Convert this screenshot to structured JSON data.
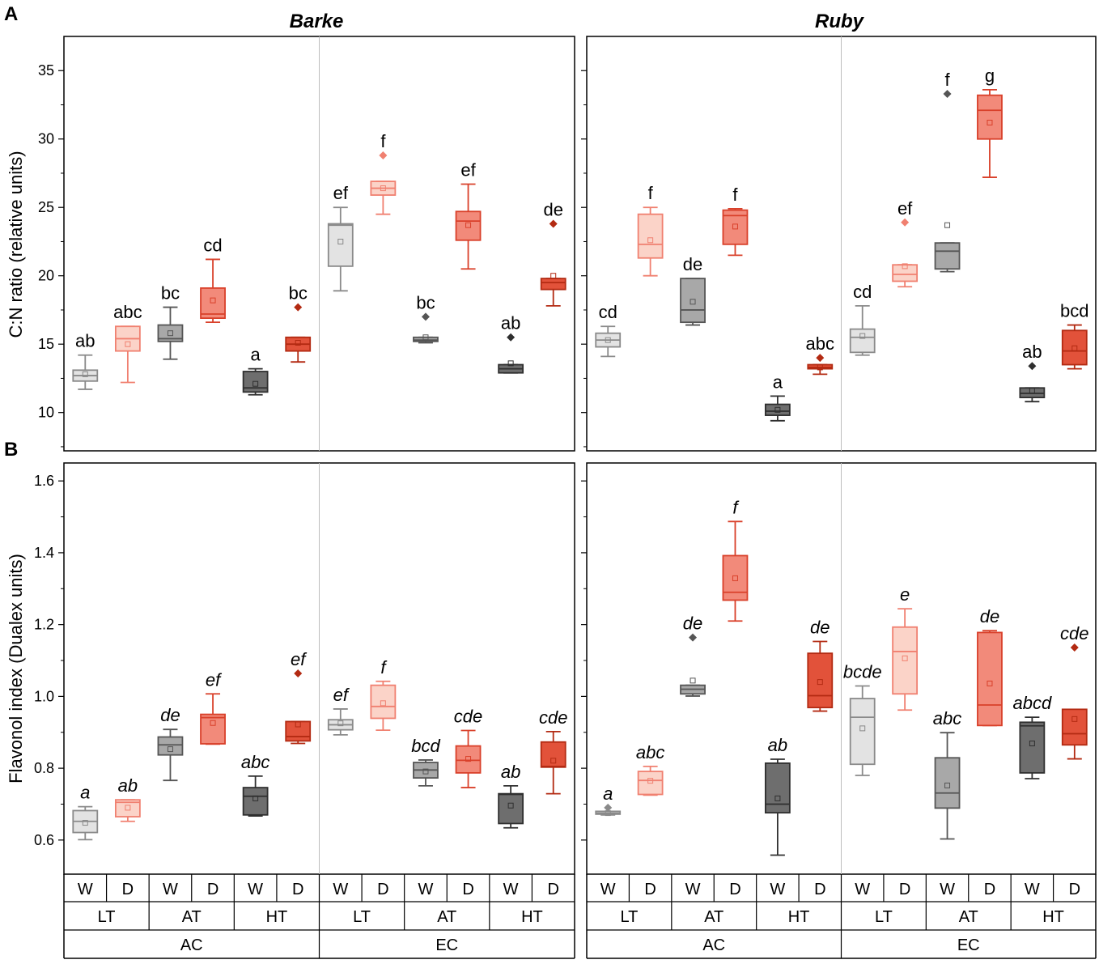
{
  "panel_labels": {
    "a": "A",
    "b": "B"
  },
  "axis_labels": {
    "row_a": "C:N ratio (relative units)",
    "row_b": "Flavonol index (Dualex units)"
  },
  "x_axis": {
    "water": [
      "W",
      "D",
      "W",
      "D",
      "W",
      "D",
      "W",
      "D",
      "W",
      "D",
      "W",
      "D"
    ],
    "temperature": [
      "LT",
      "AT",
      "HT",
      "LT",
      "AT",
      "HT"
    ],
    "co2": [
      "AC",
      "EC"
    ]
  },
  "colors": {
    "LT_W": {
      "fill": "#e3e3e3",
      "stroke": "#8a8a8a"
    },
    "LT_D": {
      "fill": "#fbd3c8",
      "stroke": "#f08070"
    },
    "AT_W": {
      "fill": "#a8a8a8",
      "stroke": "#555555"
    },
    "AT_D": {
      "fill": "#f28a7a",
      "stroke": "#d9402a"
    },
    "HT_W": {
      "fill": "#6e6e6e",
      "stroke": "#2f2f2f"
    },
    "HT_D": {
      "fill": "#e2523a",
      "stroke": "#b32a12"
    }
  },
  "chart_data": [
    {
      "id": "cn-barke",
      "type": "box",
      "title": "Barke",
      "ylabel": "C:N ratio (relative units)",
      "ylim": [
        7.2,
        37.5
      ],
      "yticks": [
        10,
        15,
        20,
        25,
        30,
        35
      ],
      "boxes": [
        {
          "group": "AC",
          "temp": "LT",
          "water": "W",
          "min": 11.7,
          "q1": 12.3,
          "median": 12.7,
          "q3": 13.1,
          "max": 14.2,
          "mean": 12.8,
          "outliers": [],
          "letter": "ab"
        },
        {
          "group": "AC",
          "temp": "LT",
          "water": "D",
          "min": 12.2,
          "q1": 14.5,
          "median": 15.4,
          "q3": 16.3,
          "max": 16.3,
          "mean": 15.0,
          "outliers": [],
          "letter": "abc"
        },
        {
          "group": "AC",
          "temp": "AT",
          "water": "W",
          "min": 13.9,
          "q1": 15.2,
          "median": 15.4,
          "q3": 16.4,
          "max": 17.7,
          "mean": 15.8,
          "outliers": [],
          "letter": "bc"
        },
        {
          "group": "AC",
          "temp": "AT",
          "water": "D",
          "min": 16.6,
          "q1": 16.9,
          "median": 17.2,
          "q3": 19.1,
          "max": 21.2,
          "mean": 18.2,
          "outliers": [],
          "letter": "cd"
        },
        {
          "group": "AC",
          "temp": "HT",
          "water": "W",
          "min": 11.3,
          "q1": 11.5,
          "median": 11.8,
          "q3": 13.0,
          "max": 13.2,
          "mean": 12.1,
          "outliers": [],
          "letter": "a"
        },
        {
          "group": "AC",
          "temp": "HT",
          "water": "D",
          "min": 13.7,
          "q1": 14.5,
          "median": 15.0,
          "q3": 15.5,
          "max": 15.5,
          "mean": 15.1,
          "outliers": [
            17.7
          ],
          "letter": "bc"
        },
        {
          "group": "EC",
          "temp": "LT",
          "water": "W",
          "min": 18.9,
          "q1": 20.7,
          "median": 23.7,
          "q3": 23.8,
          "max": 25.0,
          "mean": 22.5,
          "outliers": [],
          "letter": "ef"
        },
        {
          "group": "EC",
          "temp": "LT",
          "water": "D",
          "min": 24.5,
          "q1": 25.9,
          "median": 26.4,
          "q3": 26.9,
          "max": 26.9,
          "mean": 26.4,
          "outliers": [
            28.8
          ],
          "letter": "f"
        },
        {
          "group": "EC",
          "temp": "AT",
          "water": "W",
          "min": 15.1,
          "q1": 15.2,
          "median": 15.3,
          "q3": 15.5,
          "max": 15.5,
          "mean": 15.5,
          "outliers": [
            17.0
          ],
          "letter": "bc"
        },
        {
          "group": "EC",
          "temp": "AT",
          "water": "D",
          "min": 20.5,
          "q1": 22.6,
          "median": 24.0,
          "q3": 24.7,
          "max": 26.7,
          "mean": 23.7,
          "outliers": [],
          "letter": "ef"
        },
        {
          "group": "EC",
          "temp": "HT",
          "water": "W",
          "min": 12.9,
          "q1": 12.9,
          "median": 13.2,
          "q3": 13.5,
          "max": 13.5,
          "mean": 13.6,
          "outliers": [
            15.5
          ],
          "letter": "ab"
        },
        {
          "group": "EC",
          "temp": "HT",
          "water": "D",
          "min": 17.8,
          "q1": 19.0,
          "median": 19.5,
          "q3": 19.8,
          "max": 19.8,
          "mean": 20.0,
          "outliers": [
            23.8
          ],
          "letter": "de"
        }
      ]
    },
    {
      "id": "cn-ruby",
      "type": "box",
      "title": "Ruby",
      "ylabel": "C:N ratio (relative units)",
      "ylim": [
        7.2,
        37.5
      ],
      "yticks": [
        10,
        15,
        20,
        25,
        30,
        35
      ],
      "boxes": [
        {
          "group": "AC",
          "temp": "LT",
          "water": "W",
          "min": 14.1,
          "q1": 14.8,
          "median": 15.3,
          "q3": 15.8,
          "max": 16.3,
          "mean": 15.3,
          "outliers": [],
          "letter": "cd"
        },
        {
          "group": "AC",
          "temp": "LT",
          "water": "D",
          "min": 20.0,
          "q1": 21.3,
          "median": 22.3,
          "q3": 24.5,
          "max": 25.0,
          "mean": 22.6,
          "outliers": [],
          "letter": "f"
        },
        {
          "group": "AC",
          "temp": "AT",
          "water": "W",
          "min": 16.4,
          "q1": 16.6,
          "median": 17.5,
          "q3": 19.8,
          "max": 19.8,
          "mean": 18.1,
          "outliers": [],
          "letter": "de"
        },
        {
          "group": "AC",
          "temp": "AT",
          "water": "D",
          "min": 21.5,
          "q1": 22.3,
          "median": 24.4,
          "q3": 24.8,
          "max": 24.9,
          "mean": 23.6,
          "outliers": [],
          "letter": "f"
        },
        {
          "group": "AC",
          "temp": "HT",
          "water": "W",
          "min": 9.4,
          "q1": 9.8,
          "median": 10.1,
          "q3": 10.6,
          "max": 11.2,
          "mean": 10.2,
          "outliers": [],
          "letter": "a"
        },
        {
          "group": "AC",
          "temp": "HT",
          "water": "D",
          "min": 12.8,
          "q1": 13.2,
          "median": 13.3,
          "q3": 13.5,
          "max": 13.5,
          "mean": 13.3,
          "outliers": [
            14.0
          ],
          "letter": "abc"
        },
        {
          "group": "EC",
          "temp": "LT",
          "water": "W",
          "min": 14.2,
          "q1": 14.4,
          "median": 15.5,
          "q3": 16.1,
          "max": 17.8,
          "mean": 15.6,
          "outliers": [],
          "letter": "cd"
        },
        {
          "group": "EC",
          "temp": "LT",
          "water": "D",
          "min": 19.2,
          "q1": 19.6,
          "median": 20.1,
          "q3": 20.8,
          "max": 20.8,
          "mean": 20.7,
          "outliers": [
            23.9
          ],
          "letter": "ef"
        },
        {
          "group": "EC",
          "temp": "AT",
          "water": "W",
          "min": 20.3,
          "q1": 20.5,
          "median": 21.8,
          "q3": 22.4,
          "max": 22.4,
          "mean": 23.7,
          "outliers": [
            33.3
          ],
          "letter": "f"
        },
        {
          "group": "EC",
          "temp": "AT",
          "water": "D",
          "min": 27.2,
          "q1": 30.0,
          "median": 32.1,
          "q3": 33.2,
          "max": 33.6,
          "mean": 31.2,
          "outliers": [],
          "letter": "g"
        },
        {
          "group": "EC",
          "temp": "HT",
          "water": "W",
          "min": 10.8,
          "q1": 11.1,
          "median": 11.4,
          "q3": 11.8,
          "max": 11.8,
          "mean": 11.6,
          "outliers": [
            13.4
          ],
          "letter": "ab"
        },
        {
          "group": "EC",
          "temp": "HT",
          "water": "D",
          "min": 13.2,
          "q1": 13.5,
          "median": 14.5,
          "q3": 16.0,
          "max": 16.4,
          "mean": 14.7,
          "outliers": [],
          "letter": "bcd"
        }
      ]
    },
    {
      "id": "flav-barke",
      "type": "box",
      "title": "Barke",
      "ylabel": "Flavonol index (Dualex units)",
      "ylim": [
        0.505,
        1.65
      ],
      "yticks": [
        0.6,
        0.8,
        1.0,
        1.2,
        1.4,
        1.6
      ],
      "boxes": [
        {
          "group": "AC",
          "temp": "LT",
          "water": "W",
          "min": 0.601,
          "q1": 0.621,
          "median": 0.652,
          "q3": 0.682,
          "max": 0.693,
          "mean": 0.648,
          "outliers": [],
          "letter": "a"
        },
        {
          "group": "AC",
          "temp": "LT",
          "water": "D",
          "min": 0.652,
          "q1": 0.665,
          "median": 0.705,
          "q3": 0.712,
          "max": 0.712,
          "mean": 0.69,
          "outliers": [],
          "letter": "ab"
        },
        {
          "group": "AC",
          "temp": "AT",
          "water": "W",
          "min": 0.766,
          "q1": 0.837,
          "median": 0.865,
          "q3": 0.887,
          "max": 0.908,
          "mean": 0.853,
          "outliers": [],
          "letter": "de"
        },
        {
          "group": "AC",
          "temp": "AT",
          "water": "D",
          "min": 0.867,
          "q1": 0.868,
          "median": 0.941,
          "q3": 0.95,
          "max": 1.007,
          "mean": 0.926,
          "outliers": [],
          "letter": "ef"
        },
        {
          "group": "AC",
          "temp": "HT",
          "water": "W",
          "min": 0.667,
          "q1": 0.67,
          "median": 0.722,
          "q3": 0.746,
          "max": 0.778,
          "mean": 0.716,
          "outliers": [],
          "letter": "abc"
        },
        {
          "group": "AC",
          "temp": "HT",
          "water": "D",
          "min": 0.869,
          "q1": 0.876,
          "median": 0.888,
          "q3": 0.93,
          "max": 0.93,
          "mean": 0.922,
          "outliers": [
            1.064
          ],
          "letter": "ef"
        },
        {
          "group": "EC",
          "temp": "LT",
          "water": "W",
          "min": 0.893,
          "q1": 0.907,
          "median": 0.921,
          "q3": 0.935,
          "max": 0.965,
          "mean": 0.925,
          "outliers": [],
          "letter": "ef"
        },
        {
          "group": "EC",
          "temp": "LT",
          "water": "D",
          "min": 0.906,
          "q1": 0.939,
          "median": 0.972,
          "q3": 1.031,
          "max": 1.042,
          "mean": 0.981,
          "outliers": [],
          "letter": "f"
        },
        {
          "group": "EC",
          "temp": "AT",
          "water": "W",
          "min": 0.751,
          "q1": 0.773,
          "median": 0.795,
          "q3": 0.816,
          "max": 0.823,
          "mean": 0.791,
          "outliers": [],
          "letter": "bcd"
        },
        {
          "group": "EC",
          "temp": "AT",
          "water": "D",
          "min": 0.746,
          "q1": 0.787,
          "median": 0.822,
          "q3": 0.862,
          "max": 0.905,
          "mean": 0.826,
          "outliers": [],
          "letter": "cde"
        },
        {
          "group": "EC",
          "temp": "HT",
          "water": "W",
          "min": 0.634,
          "q1": 0.646,
          "median": 0.727,
          "q3": 0.729,
          "max": 0.751,
          "mean": 0.696,
          "outliers": [],
          "letter": "ab"
        },
        {
          "group": "EC",
          "temp": "HT",
          "water": "D",
          "min": 0.729,
          "q1": 0.803,
          "median": 0.805,
          "q3": 0.873,
          "max": 0.902,
          "mean": 0.821,
          "outliers": [],
          "letter": "cde"
        }
      ]
    },
    {
      "id": "flav-ruby",
      "type": "box",
      "title": "Ruby",
      "ylabel": "Flavonol index (Dualex units)",
      "ylim": [
        0.505,
        1.65
      ],
      "yticks": [
        0.6,
        0.8,
        1.0,
        1.2,
        1.4,
        1.6
      ],
      "boxes": [
        {
          "group": "AC",
          "temp": "LT",
          "water": "W",
          "min": 0.67,
          "q1": 0.672,
          "median": 0.675,
          "q3": 0.68,
          "max": 0.68,
          "mean": 0.675,
          "outliers": [
            0.69
          ],
          "letter": "a"
        },
        {
          "group": "AC",
          "temp": "LT",
          "water": "D",
          "min": 0.725,
          "q1": 0.727,
          "median": 0.766,
          "q3": 0.791,
          "max": 0.805,
          "mean": 0.765,
          "outliers": [],
          "letter": "abc"
        },
        {
          "group": "AC",
          "temp": "AT",
          "water": "W",
          "min": 1.001,
          "q1": 1.007,
          "median": 1.02,
          "q3": 1.031,
          "max": 1.031,
          "mean": 1.044,
          "outliers": [
            1.164
          ],
          "letter": "de"
        },
        {
          "group": "AC",
          "temp": "AT",
          "water": "D",
          "min": 1.21,
          "q1": 1.268,
          "median": 1.29,
          "q3": 1.392,
          "max": 1.487,
          "mean": 1.329,
          "outliers": [],
          "letter": "f"
        },
        {
          "group": "AC",
          "temp": "HT",
          "water": "W",
          "min": 0.558,
          "q1": 0.676,
          "median": 0.7,
          "q3": 0.814,
          "max": 0.825,
          "mean": 0.716,
          "outliers": [],
          "letter": "ab"
        },
        {
          "group": "AC",
          "temp": "HT",
          "water": "D",
          "min": 0.959,
          "q1": 0.969,
          "median": 1.002,
          "q3": 1.12,
          "max": 1.153,
          "mean": 1.04,
          "outliers": [],
          "letter": "de"
        },
        {
          "group": "EC",
          "temp": "LT",
          "water": "W",
          "min": 0.78,
          "q1": 0.811,
          "median": 0.942,
          "q3": 0.994,
          "max": 1.029,
          "mean": 0.911,
          "outliers": [],
          "letter": "bcde"
        },
        {
          "group": "EC",
          "temp": "LT",
          "water": "D",
          "min": 0.962,
          "q1": 1.007,
          "median": 1.125,
          "q3": 1.193,
          "max": 1.244,
          "mean": 1.106,
          "outliers": [],
          "letter": "e"
        },
        {
          "group": "EC",
          "temp": "AT",
          "water": "W",
          "min": 0.603,
          "q1": 0.689,
          "median": 0.731,
          "q3": 0.829,
          "max": 0.899,
          "mean": 0.752,
          "outliers": [],
          "letter": "abc"
        },
        {
          "group": "EC",
          "temp": "AT",
          "water": "D",
          "min": 0.919,
          "q1": 0.919,
          "median": 0.976,
          "q3": 1.178,
          "max": 1.183,
          "mean": 1.036,
          "outliers": [],
          "letter": "de"
        },
        {
          "group": "EC",
          "temp": "HT",
          "water": "W",
          "min": 0.771,
          "q1": 0.787,
          "median": 0.918,
          "q3": 0.928,
          "max": 0.942,
          "mean": 0.869,
          "outliers": [],
          "letter": "abcd"
        },
        {
          "group": "EC",
          "temp": "HT",
          "water": "D",
          "min": 0.826,
          "q1": 0.865,
          "median": 0.896,
          "q3": 0.964,
          "max": 0.964,
          "mean": 0.937,
          "outliers": [
            1.136
          ],
          "letter": "cde"
        }
      ]
    }
  ]
}
